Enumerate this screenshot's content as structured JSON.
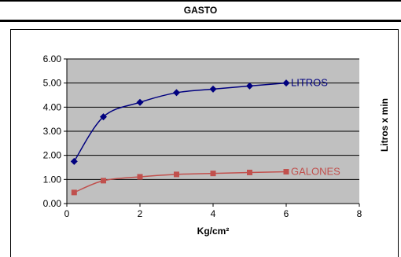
{
  "header": {
    "title": "GASTO"
  },
  "chart_data": {
    "type": "line",
    "title": "GASTO",
    "xlabel": "Kg/cm²",
    "ylabel": "Litros x min",
    "xlim": [
      0,
      8
    ],
    "ylim": [
      0,
      6
    ],
    "x_ticks": [
      "0",
      "2",
      "4",
      "6",
      "8"
    ],
    "y_ticks": [
      "0.00",
      "1.00",
      "2.00",
      "3.00",
      "4.00",
      "5.00",
      "6.00"
    ],
    "grid": true,
    "series": [
      {
        "name": "LITROS",
        "color": "#00007f",
        "marker": "diamond",
        "x": [
          0.2,
          1,
          2,
          3,
          4,
          5,
          6
        ],
        "y": [
          1.75,
          3.6,
          4.2,
          4.6,
          4.75,
          4.88,
          5.0
        ]
      },
      {
        "name": "GALONES",
        "color": "#c0504d",
        "marker": "square",
        "x": [
          0.2,
          1,
          2,
          3,
          4,
          5,
          6
        ],
        "y": [
          0.46,
          0.95,
          1.11,
          1.21,
          1.25,
          1.29,
          1.32
        ]
      }
    ]
  }
}
